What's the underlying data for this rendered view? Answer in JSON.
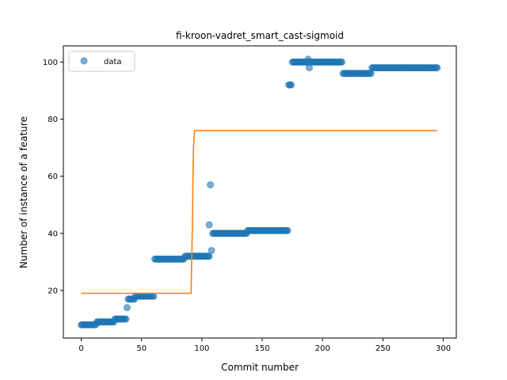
{
  "chart_data": {
    "type": "scatter",
    "title": "fi-kroon-vadret_smart_cast-sigmoid",
    "xlabel": "Commit number",
    "ylabel": "Number of instance of a feature",
    "xlim": [
      -14.8,
      310.8
    ],
    "ylim": [
      3.35,
      105.65
    ],
    "xticks": [
      0,
      50,
      100,
      150,
      200,
      250,
      300
    ],
    "yticks": [
      20,
      40,
      60,
      80,
      100
    ],
    "grid": false,
    "legend": {
      "placement": "top-left",
      "entries": [
        "data"
      ]
    },
    "colors": {
      "data": "#1f77b4",
      "fit": "#ff7f0e"
    },
    "series": [
      {
        "name": "data",
        "kind": "scatter",
        "segments": [
          {
            "x_start": 0,
            "x_end": 12,
            "y": 8
          },
          {
            "x_start": 13,
            "x_end": 27,
            "y": 9
          },
          {
            "x_start": 28,
            "x_end": 37,
            "y": 10
          },
          {
            "x_start": 39,
            "x_end": 44,
            "y": 17
          },
          {
            "x_start": 45,
            "x_end": 60,
            "y": 18
          },
          {
            "x_start": 61,
            "x_end": 85,
            "y": 31
          },
          {
            "x_start": 86,
            "x_end": 106,
            "y": 32
          },
          {
            "x_start": 109,
            "x_end": 137,
            "y": 40
          },
          {
            "x_start": 138,
            "x_end": 171,
            "y": 41
          },
          {
            "x_start": 172,
            "x_end": 174,
            "y": 92
          },
          {
            "x_start": 175,
            "x_end": 216,
            "y": 100
          },
          {
            "x_start": 217,
            "x_end": 240,
            "y": 96
          },
          {
            "x_start": 241,
            "x_end": 295,
            "y": 98
          }
        ],
        "points": [
          {
            "x": 38,
            "y": 14
          },
          {
            "x": 106,
            "y": 43
          },
          {
            "x": 107,
            "y": 57
          },
          {
            "x": 108,
            "y": 34
          },
          {
            "x": 188,
            "y": 101
          },
          {
            "x": 189,
            "y": 98
          }
        ]
      },
      {
        "name": "",
        "kind": "line",
        "x": [
          0,
          91,
          92,
          93,
          94,
          295
        ],
        "y": [
          19,
          19,
          40,
          70,
          76,
          76
        ]
      }
    ]
  }
}
